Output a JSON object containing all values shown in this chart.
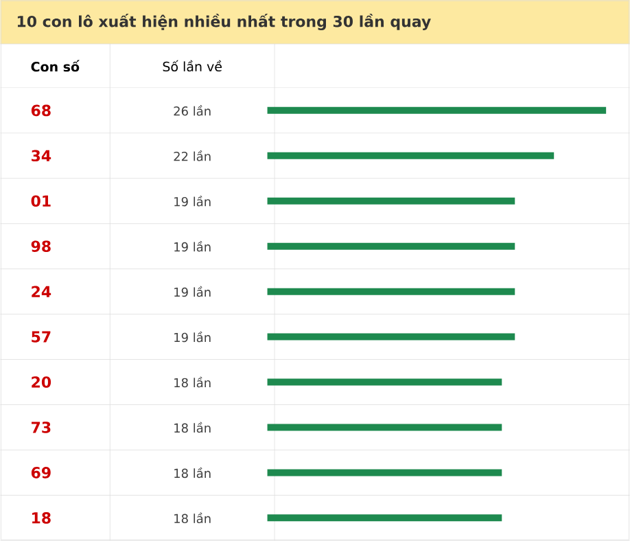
{
  "chart_data": {
    "type": "bar",
    "orientation": "horizontal",
    "title": "10 con lô xuất hiện nhiều nhất trong 30 lần quay",
    "ylabel": "Con số",
    "xlabel": "Số lần về",
    "categories": [
      "68",
      "34",
      "01",
      "98",
      "24",
      "57",
      "20",
      "73",
      "69",
      "18"
    ],
    "values": [
      26,
      22,
      19,
      19,
      19,
      19,
      18,
      18,
      18,
      18
    ],
    "value_labels": [
      "26 lần",
      "22 lần",
      "19 lần",
      "19 lần",
      "19 lần",
      "19 lần",
      "18 lần",
      "18 lần",
      "18 lần",
      "18 lần"
    ],
    "color": "#1e8a4f",
    "xlim": [
      0,
      26
    ],
    "tick_labels": "y",
    "grid": false
  }
}
